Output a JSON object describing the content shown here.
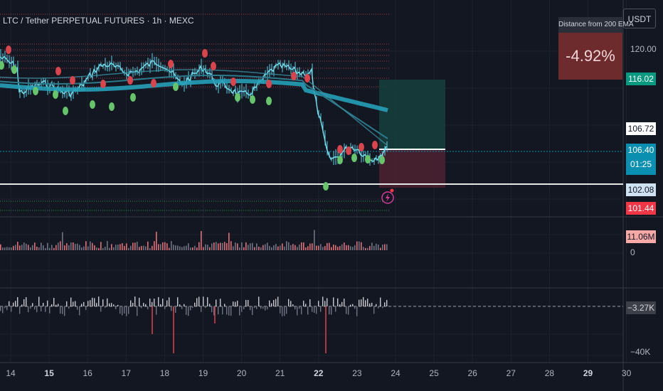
{
  "header": {
    "title": "LTC / Tether PERPETUAL FUTURES · 1h · MEXC"
  },
  "unit_button": {
    "label": "USDT"
  },
  "ema_indicator": {
    "header": "Distance from 200 EMA",
    "value": "-4.92%"
  },
  "price_axis": {
    "top_label": "120.00"
  },
  "price_tags": [
    {
      "label": "116.02",
      "bg": "#089981",
      "fg": "#ffffff"
    },
    {
      "label": "106.72",
      "bg": "#ffffff",
      "fg": "#131722"
    },
    {
      "label": "106.40",
      "sub": "01:25",
      "bg": "#0b8fb0",
      "fg": "#ffffff"
    },
    {
      "label": "102.08",
      "bg": "#cfe2f3",
      "fg": "#131722"
    },
    {
      "label": "101.44",
      "bg": "#f23645",
      "fg": "#ffffff"
    }
  ],
  "volume_pane": {
    "tag": "11.06M",
    "zero_label": "0"
  },
  "delta_pane": {
    "tag": "−3.27K",
    "bottom_label": "−40K"
  },
  "time_axis": {
    "labels": [
      {
        "text": "14",
        "bold": false
      },
      {
        "text": "15",
        "bold": true
      },
      {
        "text": "16",
        "bold": false
      },
      {
        "text": "17",
        "bold": false
      },
      {
        "text": "18",
        "bold": false
      },
      {
        "text": "19",
        "bold": false
      },
      {
        "text": "20",
        "bold": false
      },
      {
        "text": "21",
        "bold": false
      },
      {
        "text": "22",
        "bold": true
      },
      {
        "text": "23",
        "bold": false
      },
      {
        "text": "24",
        "bold": false
      },
      {
        "text": "25",
        "bold": false
      },
      {
        "text": "26",
        "bold": false
      },
      {
        "text": "27",
        "bold": false
      },
      {
        "text": "28",
        "bold": false
      },
      {
        "text": "29",
        "bold": true
      },
      {
        "text": "30",
        "bold": false
      }
    ]
  },
  "colors": {
    "background": "#131722",
    "up": "#5ad1e5",
    "ema": "#26a0b8",
    "profit_zone": "#16403c",
    "loss_zone": "#4a2130",
    "pivot_high": "#d9444d",
    "pivot_low": "#66c46b"
  },
  "icons": [
    "lightning-alert-icon"
  ]
}
